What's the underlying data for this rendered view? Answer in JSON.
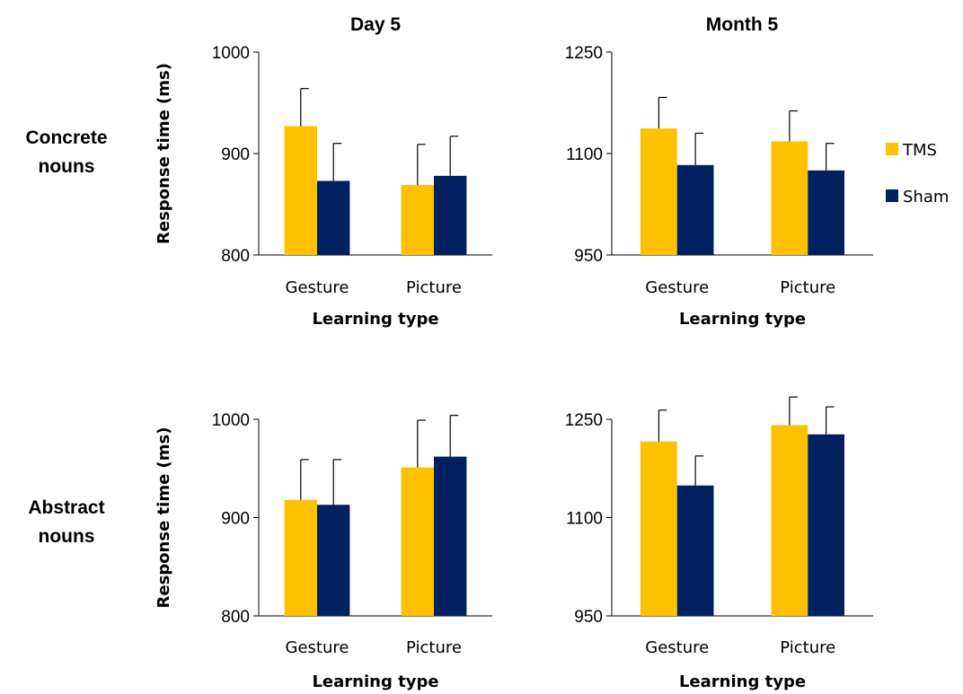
{
  "column_titles": [
    "Day 5",
    "Month 5"
  ],
  "row_labels": [
    [
      "Concrete",
      "nouns"
    ],
    [
      "Abstract",
      "nouns"
    ]
  ],
  "legend": [
    {
      "name": "TMS",
      "color": "#FFC000"
    },
    {
      "name": "Sham",
      "color": "#002060"
    }
  ],
  "chart_data": [
    {
      "type": "bar",
      "panel": "Concrete nouns, Day 5",
      "categories": [
        "Gesture",
        "Picture"
      ],
      "xlabel": "Learning type",
      "ylabel": "Response time (ms)",
      "ylim": [
        800,
        1000
      ],
      "yticks": [
        800,
        900,
        1000
      ],
      "series": [
        {
          "name": "TMS",
          "values": [
            927,
            869
          ],
          "error": [
            37,
            40
          ]
        },
        {
          "name": "Sham",
          "values": [
            873,
            878
          ],
          "error": [
            37,
            39
          ]
        }
      ]
    },
    {
      "type": "bar",
      "panel": "Concrete nouns, Month 5",
      "categories": [
        "Gesture",
        "Picture"
      ],
      "xlabel": "Learning type",
      "ylabel": "",
      "ylim": [
        950,
        1250
      ],
      "yticks": [
        950,
        1100,
        1250
      ],
      "series": [
        {
          "name": "TMS",
          "values": [
            1137,
            1118
          ],
          "error": [
            46,
            45
          ]
        },
        {
          "name": "Sham",
          "values": [
            1083,
            1075
          ],
          "error": [
            47,
            40
          ]
        }
      ]
    },
    {
      "type": "bar",
      "panel": "Abstract nouns, Day 5",
      "categories": [
        "Gesture",
        "Picture"
      ],
      "xlabel": "Learning type",
      "ylabel": "Response time (ms)",
      "ylim": [
        800,
        1000
      ],
      "yticks": [
        800,
        900,
        1000
      ],
      "series": [
        {
          "name": "TMS",
          "values": [
            918,
            951
          ],
          "error": [
            41,
            48
          ]
        },
        {
          "name": "Sham",
          "values": [
            913,
            962
          ],
          "error": [
            46,
            42
          ]
        }
      ]
    },
    {
      "type": "bar",
      "panel": "Abstract nouns, Month 5",
      "categories": [
        "Gesture",
        "Picture"
      ],
      "xlabel": "Learning type",
      "ylabel": "",
      "ylim": [
        950,
        1250
      ],
      "yticks": [
        950,
        1100,
        1250
      ],
      "series": [
        {
          "name": "TMS",
          "values": [
            1216,
            1241
          ],
          "error": [
            48,
            43
          ]
        },
        {
          "name": "Sham",
          "values": [
            1149,
            1227
          ],
          "error": [
            45,
            42
          ]
        }
      ]
    }
  ]
}
